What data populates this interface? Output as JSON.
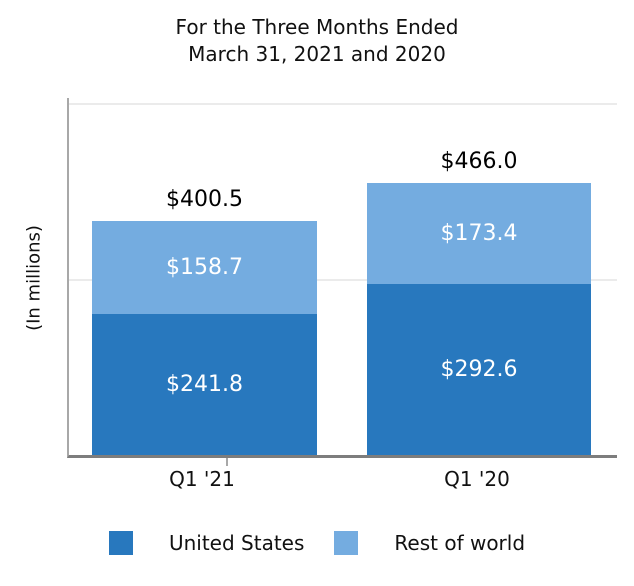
{
  "title": {
    "line1": "For the Three Months Ended",
    "line2": "March 31, 2021 and 2020"
  },
  "chart_data": {
    "type": "bar",
    "stacked": true,
    "title": "For the Three Months Ended March 31, 2021 and 2020",
    "categories": [
      "Q1 '21",
      "Q1 '20"
    ],
    "series": [
      {
        "name": "United States",
        "color": "#2878BE",
        "values": [
          241.8,
          292.6
        ],
        "labels": [
          "$241.8",
          "$292.6"
        ]
      },
      {
        "name": "Rest of world",
        "color": "#74ACE0",
        "values": [
          158.7,
          173.4
        ],
        "labels": [
          "$158.7",
          "$173.4"
        ]
      }
    ],
    "totals": [
      400.5,
      466.0
    ],
    "total_labels": [
      "$400.5",
      "$466.0"
    ],
    "xlabel": "",
    "ylabel": "(In millions)",
    "ylim": [
      0,
      611
    ],
    "gridline_values": [
      300,
      600
    ],
    "grid": true,
    "legend_position": "bottom",
    "value_label_color_inside": "#ffffff",
    "value_label_color_total": "#000000",
    "axis_color": "#7d7d7d",
    "spine_color": "#a8a8a8",
    "gridline_color": "#ebebeb"
  }
}
